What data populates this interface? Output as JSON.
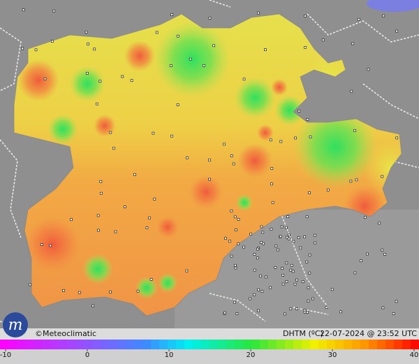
{
  "footer": {
    "copyright": "©Meteoclimatic",
    "variable": "DHTM (ºC)",
    "timestamp": "22-07-2024 @ 23:52 UTC"
  },
  "legend": {
    "ticks": [
      -10,
      0,
      10,
      20,
      30,
      40
    ]
  }
}
